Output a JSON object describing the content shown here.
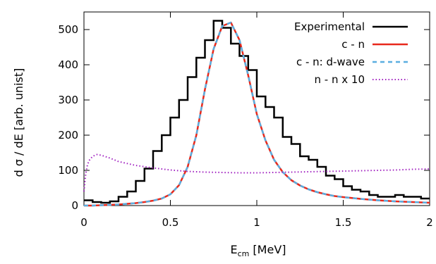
{
  "chart_data": {
    "type": "line",
    "title": "",
    "xlabel": "E",
    "xlabel_subscript": "cm",
    "xlabel_unit": " [MeV]",
    "ylabel": "d σ / dE [arb. unist]",
    "xlim": [
      0,
      2
    ],
    "ylim": [
      0,
      550
    ],
    "xticks": [
      0,
      0.5,
      1,
      1.5,
      2
    ],
    "xtick_labels": [
      "0",
      "0.5",
      "1",
      "1.5",
      "2"
    ],
    "yticks": [
      0,
      100,
      200,
      300,
      400,
      500
    ],
    "ytick_labels": [
      "0",
      "100",
      "200",
      "300",
      "400",
      "500"
    ],
    "grid": false,
    "legend_position": "top-right",
    "series": [
      {
        "name": "Experimental",
        "style": "steps",
        "color": "#000000",
        "bin_width": 0.05,
        "x": [
          0.0,
          0.05,
          0.1,
          0.15,
          0.2,
          0.25,
          0.3,
          0.35,
          0.4,
          0.45,
          0.5,
          0.55,
          0.6,
          0.65,
          0.7,
          0.75,
          0.8,
          0.85,
          0.9,
          0.95,
          1.0,
          1.05,
          1.1,
          1.15,
          1.2,
          1.25,
          1.3,
          1.35,
          1.4,
          1.45,
          1.5,
          1.55,
          1.6,
          1.65,
          1.7,
          1.75,
          1.8,
          1.85,
          1.9,
          1.95
        ],
        "y": [
          15,
          10,
          8,
          12,
          25,
          40,
          70,
          105,
          155,
          200,
          250,
          300,
          365,
          420,
          470,
          525,
          505,
          460,
          425,
          385,
          310,
          280,
          250,
          195,
          175,
          140,
          130,
          110,
          85,
          75,
          55,
          45,
          40,
          30,
          25,
          25,
          30,
          25,
          25,
          20
        ]
      },
      {
        "name": "c - n",
        "style": "solid",
        "color": "#e8291c",
        "x": [
          0.0,
          0.05,
          0.1,
          0.15,
          0.2,
          0.25,
          0.3,
          0.35,
          0.4,
          0.45,
          0.5,
          0.55,
          0.6,
          0.65,
          0.7,
          0.75,
          0.8,
          0.85,
          0.9,
          0.95,
          1.0,
          1.05,
          1.1,
          1.15,
          1.2,
          1.25,
          1.3,
          1.35,
          1.4,
          1.45,
          1.5,
          1.6,
          1.7,
          1.8,
          1.9,
          2.0
        ],
        "y": [
          0,
          0,
          1,
          2,
          3,
          5,
          7,
          10,
          14,
          20,
          32,
          58,
          110,
          200,
          330,
          445,
          510,
          520,
          470,
          370,
          260,
          185,
          130,
          95,
          72,
          57,
          46,
          38,
          32,
          27,
          24,
          19,
          15,
          12,
          10,
          8
        ]
      },
      {
        "name": "c - n: d-wave",
        "style": "dashed",
        "color": "#5aaee0",
        "x": [
          0.0,
          0.05,
          0.1,
          0.15,
          0.2,
          0.25,
          0.3,
          0.35,
          0.4,
          0.45,
          0.5,
          0.55,
          0.6,
          0.65,
          0.7,
          0.75,
          0.8,
          0.85,
          0.9,
          0.95,
          1.0,
          1.05,
          1.1,
          1.15,
          1.2,
          1.25,
          1.3,
          1.35,
          1.4,
          1.45,
          1.5,
          1.6,
          1.7,
          1.8,
          1.9,
          2.0
        ],
        "y": [
          0,
          0,
          1,
          2,
          3,
          5,
          7,
          10,
          14,
          20,
          32,
          58,
          110,
          200,
          330,
          445,
          510,
          520,
          470,
          370,
          260,
          185,
          130,
          95,
          72,
          57,
          46,
          38,
          32,
          27,
          24,
          19,
          15,
          12,
          10,
          8
        ]
      },
      {
        "name": "n - n x 10",
        "style": "dotted",
        "color": "#a020c0",
        "x": [
          0.0,
          0.01,
          0.02,
          0.03,
          0.05,
          0.075,
          0.1,
          0.15,
          0.2,
          0.3,
          0.4,
          0.5,
          0.6,
          0.7,
          0.8,
          0.9,
          1.0,
          1.1,
          1.2,
          1.3,
          1.4,
          1.5,
          1.6,
          1.7,
          1.8,
          1.9,
          2.0
        ],
        "y": [
          40,
          90,
          115,
          128,
          140,
          145,
          143,
          135,
          125,
          114,
          107,
          101,
          97,
          95,
          94,
          93,
          93,
          94,
          95,
          96,
          97,
          98,
          99,
          100,
          101,
          103,
          104
        ]
      }
    ]
  }
}
